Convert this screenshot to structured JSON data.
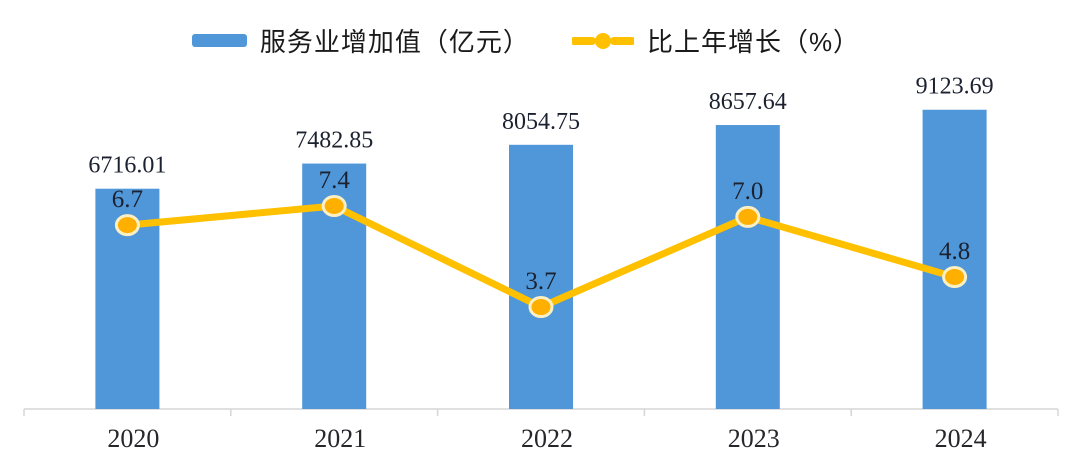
{
  "legend": {
    "items": [
      {
        "label": "服务业增加值（亿元）",
        "type": "bar",
        "color": "#4f97d8"
      },
      {
        "label": "比上年增长（%）",
        "type": "line",
        "color": "#FFC000"
      }
    ]
  },
  "chart_data": {
    "type": "bar+line",
    "categories": [
      "2020",
      "2021",
      "2022",
      "2023",
      "2024"
    ],
    "series": [
      {
        "name": "服务业增加值（亿元）",
        "type": "bar",
        "values": [
          6716.01,
          7482.85,
          8054.75,
          8657.64,
          9123.69
        ],
        "labels": [
          "6716.01",
          "7482.85",
          "8054.75",
          "8657.64",
          "9123.69"
        ],
        "color": "#4f97d8"
      },
      {
        "name": "比上年增长（%）",
        "type": "line",
        "values": [
          6.7,
          7.4,
          3.7,
          7.0,
          4.8
        ],
        "labels": [
          "6.7",
          "7.4",
          "3.7",
          "7.0",
          "4.8"
        ],
        "color": "#FFC000",
        "marker_fill": "#FEAF00",
        "marker_ring": "#FBEFC4"
      }
    ],
    "title": "",
    "xlabel": "",
    "ylabel": "",
    "value_labels_shown": true,
    "gridlines": false,
    "y_axis_labels_shown": false,
    "legend_position": "top-center",
    "colors": {
      "bar": "#4f97d8",
      "line": "#FFC000",
      "value_text": "#1c2130",
      "axis_line": "#d6d6d6",
      "x_label_text": "#26262b"
    }
  }
}
